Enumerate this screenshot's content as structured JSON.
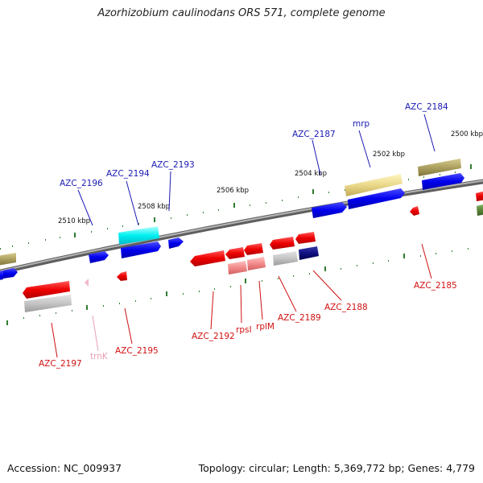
{
  "title": "Azorhizobium caulinodans ORS 571, complete genome",
  "accession": "Accession: NC_009937",
  "summary": "Topology: circular; Length: 5,369,772 bp; Genes: 4,779",
  "colors": {
    "forward_label": "#1a1ab4",
    "reverse_label": "#d01010",
    "trna_label": "#e8a0b4",
    "tick": "#2f7d2f",
    "backbone": "#8a8a8a"
  },
  "ticks": [
    "2510 kbp",
    "2508 kbp",
    "2506 kbp",
    "2504 kbp",
    "2502 kbp",
    "2500 kbp"
  ],
  "forward_genes": [
    "AZC_2196",
    "AZC_2194",
    "AZC_2193",
    "AZC_2187",
    "mrp",
    "AZC_2184"
  ],
  "reverse_genes": [
    "AZC_2197",
    "trnK",
    "AZC_2195",
    "AZC_2192",
    "rpsI",
    "rplM",
    "AZC_2189",
    "AZC_2188",
    "AZC_2185"
  ]
}
